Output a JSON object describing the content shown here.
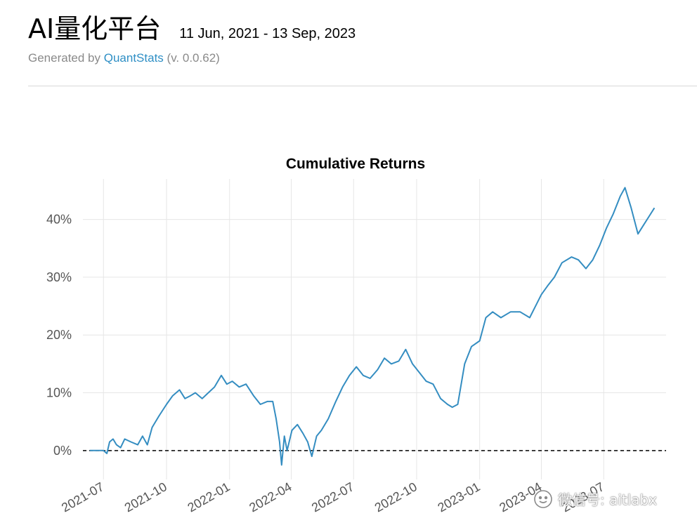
{
  "header": {
    "title": "AI量化平台",
    "date_range": "11 Jun, 2021 - 13 Sep, 2023",
    "generated_prefix": "Generated by ",
    "generated_link": "QuantStats",
    "generated_suffix": " (v. 0.0.62)"
  },
  "watermark": {
    "text": "微信号: aitlabx"
  },
  "colors": {
    "line": "#348dc1",
    "link": "#2f8fc5",
    "grid": "#e6e6e6"
  },
  "chart_data": {
    "type": "line",
    "title": "Cumulative Returns",
    "xlabel": "",
    "ylabel": "",
    "ylim": [
      -5,
      47
    ],
    "y_ticks": [
      0,
      10,
      20,
      30,
      40
    ],
    "y_tick_labels": [
      "0%",
      "10%",
      "20%",
      "30%",
      "40%"
    ],
    "x_ticks": [
      "2021-07",
      "2021-10",
      "2022-01",
      "2022-04",
      "2022-07",
      "2022-10",
      "2023-01",
      "2023-04",
      "2023-07"
    ],
    "x_range": [
      "2021-06-01",
      "2023-09-30"
    ],
    "grid": true,
    "baseline": {
      "value": 0,
      "style": "dashed"
    },
    "series": [
      {
        "x": [
          "2021-06-11",
          "2021-06-25",
          "2021-07-01",
          "2021-07-06",
          "2021-07-10",
          "2021-07-15",
          "2021-07-20",
          "2021-07-26",
          "2021-08-01",
          "2021-08-10",
          "2021-08-20",
          "2021-08-27",
          "2021-09-03",
          "2021-09-10",
          "2021-09-20",
          "2021-10-01",
          "2021-10-10",
          "2021-10-20",
          "2021-10-28",
          "2021-11-05",
          "2021-11-12",
          "2021-11-22",
          "2021-12-01",
          "2021-12-10",
          "2021-12-20",
          "2021-12-28",
          "2022-01-05",
          "2022-01-15",
          "2022-01-25",
          "2022-02-05",
          "2022-02-15",
          "2022-02-25",
          "2022-03-05",
          "2022-03-10",
          "2022-03-15",
          "2022-03-18",
          "2022-03-22",
          "2022-03-26",
          "2022-04-02",
          "2022-04-10",
          "2022-04-18",
          "2022-04-25",
          "2022-05-01",
          "2022-05-08",
          "2022-05-15",
          "2022-05-25",
          "2022-06-05",
          "2022-06-15",
          "2022-06-25",
          "2022-07-05",
          "2022-07-15",
          "2022-07-25",
          "2022-08-05",
          "2022-08-15",
          "2022-08-25",
          "2022-09-05",
          "2022-09-15",
          "2022-09-25",
          "2022-10-05",
          "2022-10-15",
          "2022-10-25",
          "2022-11-05",
          "2022-11-15",
          "2022-11-22",
          "2022-11-30",
          "2022-12-10",
          "2022-12-20",
          "2023-01-01",
          "2023-01-10",
          "2023-01-20",
          "2023-02-01",
          "2023-02-15",
          "2023-03-01",
          "2023-03-15",
          "2023-04-01",
          "2023-04-10",
          "2023-04-20",
          "2023-05-01",
          "2023-05-15",
          "2023-05-25",
          "2023-06-05",
          "2023-06-15",
          "2023-06-25",
          "2023-07-05",
          "2023-07-15",
          "2023-07-25",
          "2023-08-01",
          "2023-08-10",
          "2023-08-20",
          "2023-08-28",
          "2023-09-05",
          "2023-09-13"
        ],
        "y": [
          0.0,
          0.0,
          0.0,
          -0.5,
          1.5,
          2.0,
          1.0,
          0.5,
          2.0,
          1.5,
          1.0,
          2.5,
          1.0,
          4.0,
          6.0,
          8.0,
          9.5,
          10.5,
          9.0,
          9.5,
          10.0,
          9.0,
          10.0,
          11.0,
          13.0,
          11.5,
          12.0,
          11.0,
          11.5,
          9.5,
          8.0,
          8.5,
          8.5,
          5.5,
          1.5,
          -2.5,
          2.5,
          0.0,
          3.5,
          4.5,
          3.0,
          1.5,
          -1.0,
          2.5,
          3.5,
          5.5,
          8.5,
          11.0,
          13.0,
          14.5,
          13.0,
          12.5,
          14.0,
          16.0,
          15.0,
          15.5,
          17.5,
          15.0,
          13.5,
          12.0,
          11.5,
          9.0,
          8.0,
          7.5,
          8.0,
          15.0,
          18.0,
          19.0,
          23.0,
          24.0,
          23.0,
          24.0,
          24.0,
          23.0,
          27.0,
          28.5,
          30.0,
          32.5,
          33.5,
          33.0,
          31.5,
          33.0,
          35.5,
          38.5,
          41.0,
          44.0,
          45.5,
          42.0,
          37.5,
          39.0,
          40.5,
          42.0
        ]
      }
    ]
  }
}
